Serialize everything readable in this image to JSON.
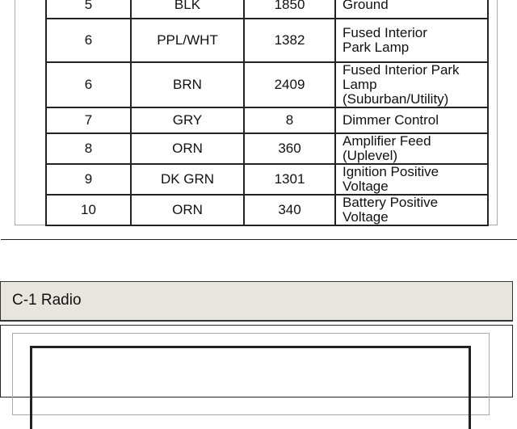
{
  "table": {
    "rows": [
      {
        "pin": "5",
        "color": "BLK",
        "circuit": "1850",
        "function": "Ground"
      },
      {
        "pin": "6",
        "color": "PPL/WHT",
        "circuit": "1382",
        "function": "Fused Interior\nPark Lamp"
      },
      {
        "pin": "6",
        "color": "BRN",
        "circuit": "2409",
        "function": "Fused Interior Park\nLamp (Suburban/Utility)"
      },
      {
        "pin": "7",
        "color": "GRY",
        "circuit": "8",
        "function": "Dimmer Control"
      },
      {
        "pin": "8",
        "color": "ORN",
        "circuit": "360",
        "function": "Amplifier Feed (Uplevel)"
      },
      {
        "pin": "9",
        "color": "DK GRN",
        "circuit": "1301",
        "function": "Ignition Positive Voltage"
      },
      {
        "pin": "10",
        "color": "ORN",
        "circuit": "340",
        "function": "Battery Positive Voltage"
      }
    ]
  },
  "section": {
    "title": "C-1 Radio"
  }
}
